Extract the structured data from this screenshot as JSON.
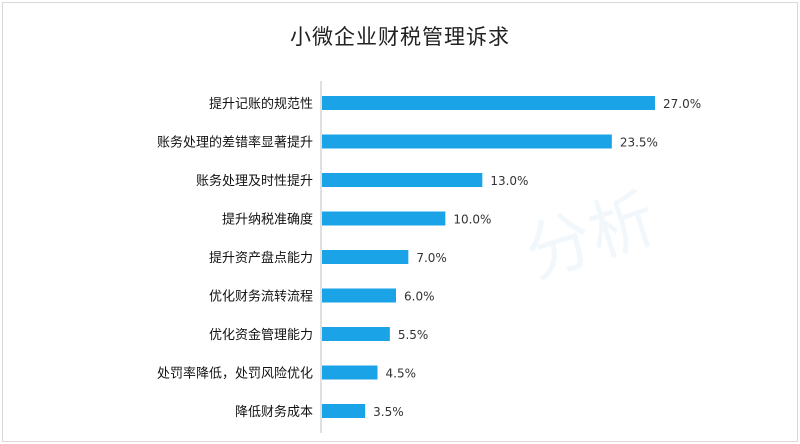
{
  "title": "小微企业财税管理诉求",
  "watermark": "分析",
  "colors": {
    "bar": "#1aa3e6",
    "axis": "#bfbfbf"
  },
  "chart_data": {
    "type": "bar",
    "orientation": "horizontal",
    "title": "小微企业财税管理诉求",
    "categories": [
      "提升记账的规范性",
      "账务处理的差错率显著提升",
      "账务处理及时性提升",
      "提升纳税准确度",
      "提升资产盘点能力",
      "优化财务流转流程",
      "优化资金管理能力",
      "处罚率降低，处罚风险优化",
      "降低财务成本"
    ],
    "values": [
      27.0,
      23.5,
      13.0,
      10.0,
      7.0,
      6.0,
      5.5,
      4.5,
      3.5
    ],
    "value_labels": [
      "27.0%",
      "23.5%",
      "13.0%",
      "10.0%",
      "7.0%",
      "6.0%",
      "5.5%",
      "4.5%",
      "3.5%"
    ],
    "xlim": [
      0,
      27.0
    ],
    "grid": false,
    "legend": "none"
  }
}
